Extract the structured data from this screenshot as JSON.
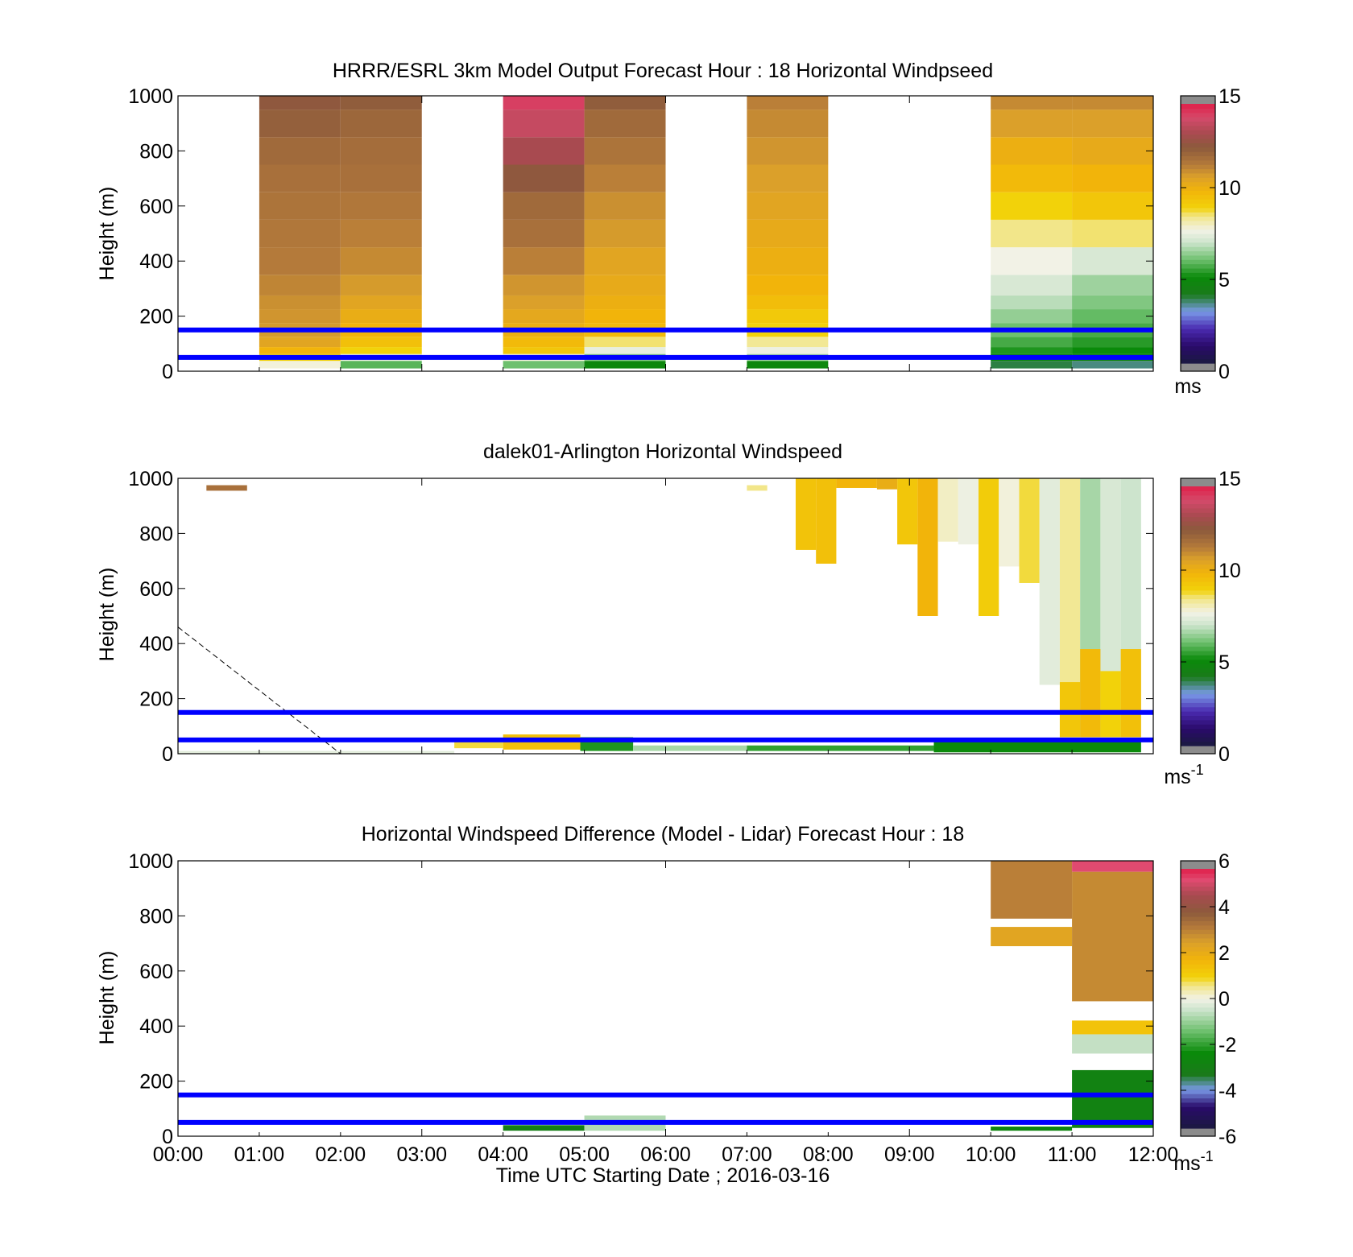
{
  "figure": {
    "xlabel": "Time UTC  Starting Date ; 2016-03-16",
    "x_ticks": [
      "00:00",
      "01:00",
      "02:00",
      "03:00",
      "04:00",
      "05:00",
      "06:00",
      "07:00",
      "08:00",
      "09:00",
      "10:00",
      "11:00",
      "12:00"
    ],
    "reference_lines_m": [
      50,
      150
    ],
    "reference_line_color": "#0000ff",
    "colormap_speed": [
      [
        0,
        "#1a1a40"
      ],
      [
        1,
        "#2a0a6a"
      ],
      [
        2,
        "#4a2ab0"
      ],
      [
        3,
        "#7a9ae8"
      ],
      [
        4,
        "#1a7a1a"
      ],
      [
        5,
        "#0a8a0a"
      ],
      [
        6,
        "#6ec06e"
      ],
      [
        7,
        "#cde4cd"
      ],
      [
        7.7,
        "#f2f2e6"
      ],
      [
        8.5,
        "#f2e68a"
      ],
      [
        9,
        "#f2d20a"
      ],
      [
        10,
        "#f2b40a"
      ],
      [
        10.8,
        "#dba02a"
      ],
      [
        11.5,
        "#b47a3a"
      ],
      [
        12.5,
        "#8c5a3c"
      ],
      [
        13.3,
        "#a84a50"
      ],
      [
        14.2,
        "#d44a6a"
      ],
      [
        15,
        "#e0204a"
      ]
    ],
    "colormap_diff": [
      [
        -6,
        "#1a1a40"
      ],
      [
        -5,
        "#2a0a6a"
      ],
      [
        -4.2,
        "#7a9ae8"
      ],
      [
        -3.5,
        "#1a7a1a"
      ],
      [
        -2.5,
        "#0a8a0a"
      ],
      [
        -1.5,
        "#6ec06e"
      ],
      [
        -0.5,
        "#cde4cd"
      ],
      [
        0,
        "#f2f2e6"
      ],
      [
        0.6,
        "#f2e68a"
      ],
      [
        1,
        "#f2d20a"
      ],
      [
        1.8,
        "#f2b40a"
      ],
      [
        2.6,
        "#dba02a"
      ],
      [
        3.3,
        "#b47a3a"
      ],
      [
        4,
        "#8c5a3c"
      ],
      [
        4.8,
        "#a84a50"
      ],
      [
        5.5,
        "#e04a70"
      ],
      [
        6,
        "#e0204a"
      ]
    ]
  },
  "panels": [
    {
      "title": "HRRR/ESRL 3km Model Output   Forecast Hour : 18 Horizontal Windpseed",
      "ylabel": "Height (m)",
      "y_ticks": [
        "0",
        "200",
        "400",
        "600",
        "800",
        "1000"
      ],
      "colorbar": {
        "unit": "ms",
        "unit_sup": "",
        "ticks": [
          "0",
          "5",
          "10",
          "15"
        ]
      },
      "show_x_ticklabels": false
    },
    {
      "title": "dalek01-Arlington  Horizontal Windspeed",
      "ylabel": "Height (m)",
      "y_ticks": [
        "0",
        "200",
        "400",
        "600",
        "800",
        "1000"
      ],
      "colorbar": {
        "unit": "ms",
        "unit_sup": "-1",
        "ticks": [
          "0",
          "5",
          "10",
          "15"
        ]
      },
      "show_x_ticklabels": false
    },
    {
      "title": "Horizontal Windspeed Difference (Model - Lidar) Forecast Hour : 18",
      "ylabel": "Height (m)",
      "y_ticks": [
        "0",
        "200",
        "400",
        "600",
        "800",
        "1000"
      ],
      "colorbar": {
        "unit": "ms",
        "unit_sup": "-1",
        "ticks": [
          "-6",
          "-4",
          "-2",
          "0",
          "2",
          "4",
          "6"
        ]
      },
      "show_x_ticklabels": true
    }
  ],
  "chart_data": [
    {
      "type": "heatmap",
      "title": "HRRR/ESRL 3km Model Output   Forecast Hour : 18 Horizontal Windpseed",
      "ylabel": "Height (m)",
      "ylim": [
        0,
        1000
      ],
      "xlim": [
        "00:00",
        "12:00"
      ],
      "colorbar_range": [
        0,
        15
      ],
      "colorbar_unit": "ms",
      "columns": [
        {
          "start": "01:00",
          "end": "02:00",
          "heights": [
            25,
            50,
            75,
            100,
            150,
            200,
            250,
            300,
            400,
            500,
            600,
            700,
            800,
            900,
            1000
          ],
          "speeds": [
            7.8,
            9.0,
            10.0,
            10.6,
            10.9,
            11.0,
            11.1,
            11.3,
            11.5,
            11.6,
            11.7,
            11.8,
            12.0,
            12.3,
            12.6
          ]
        },
        {
          "start": "02:00",
          "end": "03:00",
          "heights": [
            25,
            50,
            75,
            100,
            150,
            200,
            250,
            300,
            400,
            500,
            600,
            700,
            800,
            900,
            1000
          ],
          "speeds": [
            5.8,
            7.5,
            9.0,
            9.6,
            10.0,
            10.3,
            10.6,
            10.9,
            11.2,
            11.4,
            11.6,
            11.8,
            11.9,
            12.1,
            12.4
          ]
        },
        {
          "start": "04:00",
          "end": "05:00",
          "heights": [
            25,
            50,
            75,
            100,
            150,
            200,
            250,
            300,
            400,
            500,
            600,
            700,
            800,
            900,
            1000
          ],
          "speeds": [
            6.0,
            7.8,
            9.4,
            9.8,
            10.2,
            10.5,
            10.8,
            11.0,
            11.4,
            11.8,
            12.0,
            12.6,
            13.3,
            13.9,
            14.4
          ]
        },
        {
          "start": "05:00",
          "end": "06:00",
          "heights": [
            25,
            50,
            75,
            100,
            150,
            200,
            250,
            300,
            400,
            500,
            600,
            700,
            800,
            900,
            1000
          ],
          "speeds": [
            4.8,
            6.2,
            7.5,
            8.6,
            9.8,
            10.0,
            10.2,
            10.4,
            10.6,
            10.9,
            11.1,
            11.4,
            11.7,
            12.0,
            12.4
          ]
        },
        {
          "start": "07:00",
          "end": "08:00",
          "heights": [
            25,
            50,
            75,
            100,
            150,
            200,
            250,
            300,
            400,
            500,
            600,
            700,
            800,
            900,
            1000
          ],
          "speeds": [
            4.8,
            6.5,
            7.6,
            8.4,
            9.0,
            9.3,
            9.7,
            10.0,
            10.2,
            10.4,
            10.6,
            10.8,
            11.0,
            11.2,
            11.4
          ]
        },
        {
          "start": "10:00",
          "end": "11:00",
          "heights": [
            25,
            50,
            75,
            100,
            150,
            200,
            250,
            300,
            400,
            500,
            600,
            700,
            800,
            900,
            1000
          ],
          "speeds": [
            3.8,
            4.8,
            5.2,
            5.6,
            6.0,
            6.4,
            6.8,
            7.2,
            7.7,
            8.5,
            9.0,
            9.8,
            10.2,
            10.8,
            11.2
          ]
        },
        {
          "start": "11:00",
          "end": "12:00",
          "heights": [
            25,
            50,
            75,
            100,
            150,
            200,
            250,
            300,
            400,
            500,
            600,
            700,
            800,
            900,
            1000
          ],
          "speeds": [
            3.5,
            4.6,
            5.0,
            5.3,
            5.6,
            5.9,
            6.2,
            6.5,
            7.2,
            8.6,
            9.4,
            10.0,
            10.4,
            10.8,
            11.2
          ]
        }
      ]
    },
    {
      "type": "heatmap",
      "title": "dalek01-Arlington  Horizontal Windspeed",
      "ylabel": "Height (m)",
      "ylim": [
        0,
        1000
      ],
      "xlim": [
        "00:00",
        "12:00"
      ],
      "colorbar_range": [
        0,
        15
      ],
      "colorbar_unit": "ms-1",
      "cells": [
        {
          "t0": 0.35,
          "t1": 0.85,
          "h0": 955,
          "h1": 975,
          "v": 11.8
        },
        {
          "t0": 7.0,
          "t1": 7.25,
          "h0": 955,
          "h1": 975,
          "v": 8.5
        },
        {
          "t0": 7.6,
          "t1": 7.85,
          "h0": 740,
          "h1": 1000,
          "v": 9.5
        },
        {
          "t0": 7.85,
          "t1": 8.1,
          "h0": 690,
          "h1": 1000,
          "v": 9.6
        },
        {
          "t0": 8.1,
          "t1": 8.6,
          "h0": 965,
          "h1": 1000,
          "v": 10.0
        },
        {
          "t0": 8.6,
          "t1": 8.85,
          "h0": 960,
          "h1": 1000,
          "v": 10.3
        },
        {
          "t0": 8.85,
          "t1": 9.1,
          "h0": 760,
          "h1": 1000,
          "v": 9.4
        },
        {
          "t0": 9.1,
          "t1": 9.35,
          "h0": 500,
          "h1": 1000,
          "v": 10.0
        },
        {
          "t0": 9.35,
          "t1": 9.6,
          "h0": 770,
          "h1": 1000,
          "v": 8.0
        },
        {
          "t0": 9.6,
          "t1": 9.85,
          "h0": 760,
          "h1": 1000,
          "v": 7.6
        },
        {
          "t0": 9.85,
          "t1": 10.1,
          "h0": 500,
          "h1": 1000,
          "v": 9.2
        },
        {
          "t0": 10.1,
          "t1": 10.35,
          "h0": 680,
          "h1": 1000,
          "v": 7.8
        },
        {
          "t0": 10.35,
          "t1": 10.6,
          "h0": 620,
          "h1": 1000,
          "v": 8.8
        },
        {
          "t0": 10.6,
          "t1": 10.85,
          "h0": 250,
          "h1": 1000,
          "v": 7.4
        },
        {
          "t0": 10.85,
          "t1": 11.1,
          "h0": 60,
          "h1": 1000,
          "v": 8.4
        },
        {
          "t0": 11.1,
          "t1": 11.35,
          "h0": 60,
          "h1": 1000,
          "v": 6.6
        },
        {
          "t0": 11.35,
          "t1": 11.6,
          "h0": 60,
          "h1": 1000,
          "v": 7.2
        },
        {
          "t0": 11.6,
          "t1": 11.85,
          "h0": 60,
          "h1": 1000,
          "v": 7.0
        },
        {
          "t0": 10.85,
          "t1": 11.1,
          "h0": 60,
          "h1": 260,
          "v": 9.4
        },
        {
          "t0": 11.1,
          "t1": 11.35,
          "h0": 60,
          "h1": 380,
          "v": 9.8
        },
        {
          "t0": 11.35,
          "t1": 11.6,
          "h0": 60,
          "h1": 300,
          "v": 9.0
        },
        {
          "t0": 11.6,
          "t1": 11.85,
          "h0": 60,
          "h1": 380,
          "v": 9.6
        },
        {
          "t0": 3.4,
          "t1": 4.0,
          "h0": 20,
          "h1": 50,
          "v": 8.8
        },
        {
          "t0": 4.0,
          "t1": 4.95,
          "h0": 15,
          "h1": 70,
          "v": 9.6
        },
        {
          "t0": 4.95,
          "t1": 5.6,
          "h0": 10,
          "h1": 60,
          "v": 5.2
        },
        {
          "t0": 5.6,
          "t1": 7.0,
          "h0": 10,
          "h1": 30,
          "v": 6.6
        },
        {
          "t0": 7.0,
          "t1": 9.3,
          "h0": 10,
          "h1": 30,
          "v": 5.4
        },
        {
          "t0": 9.3,
          "t1": 11.85,
          "h0": 5,
          "h1": 50,
          "v": 5.0
        },
        {
          "t0": 0.0,
          "t1": 3.4,
          "h0": 0,
          "h1": 10,
          "v": 7.4
        }
      ],
      "dashed_line": {
        "x": [
          "00:00",
          "02:00"
        ],
        "y": [
          460,
          0
        ]
      }
    },
    {
      "type": "heatmap",
      "title": "Horizontal Windspeed Difference (Model - Lidar) Forecast Hour : 18",
      "ylabel": "Height (m)",
      "ylim": [
        0,
        1000
      ],
      "xlim": [
        "00:00",
        "12:00"
      ],
      "colorbar_range": [
        -6,
        6
      ],
      "colorbar_unit": "ms-1",
      "cells": [
        {
          "t0": 10.0,
          "t1": 11.0,
          "h0": 790,
          "h1": 1000,
          "v": 3.2
        },
        {
          "t0": 10.0,
          "t1": 11.0,
          "h0": 690,
          "h1": 760,
          "v": 2.4
        },
        {
          "t0": 11.0,
          "t1": 12.0,
          "h0": 960,
          "h1": 1000,
          "v": 5.5
        },
        {
          "t0": 11.0,
          "t1": 12.0,
          "h0": 490,
          "h1": 960,
          "v": 3.0
        },
        {
          "t0": 11.0,
          "t1": 12.0,
          "h0": 370,
          "h1": 420,
          "v": 1.4
        },
        {
          "t0": 11.0,
          "t1": 12.0,
          "h0": 300,
          "h1": 370,
          "v": -0.6
        },
        {
          "t0": 11.0,
          "t1": 12.0,
          "h0": 30,
          "h1": 240,
          "v": -3.0
        },
        {
          "t0": 10.0,
          "t1": 11.0,
          "h0": 20,
          "h1": 35,
          "v": -2.8
        },
        {
          "t0": 4.0,
          "t1": 5.0,
          "h0": 20,
          "h1": 40,
          "v": -3.2
        },
        {
          "t0": 5.0,
          "t1": 6.0,
          "h0": 20,
          "h1": 75,
          "v": -0.8
        }
      ]
    }
  ]
}
